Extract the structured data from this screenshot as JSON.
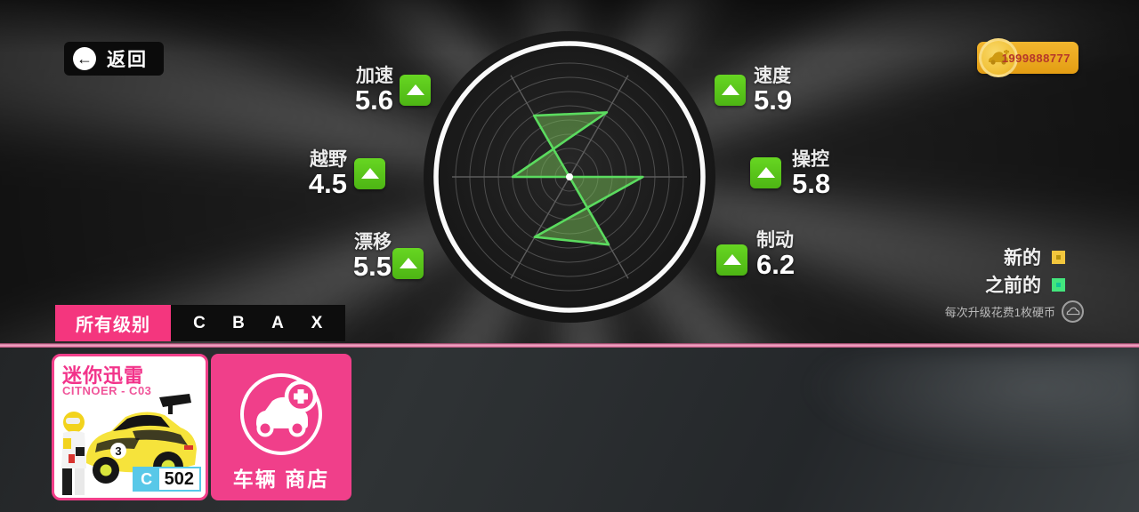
{
  "colors": {
    "pink_accent": "#f2388a",
    "green_upgrade": "#55c617",
    "gold_badge": "#eaa91e",
    "currency_text": "#b5362a",
    "legend_new": "#f2c63d",
    "legend_previous": "#2fe08d",
    "class_badge_cyan": "#58c8e8",
    "radar_polygon_stroke": "#5bdb5f"
  },
  "header": {
    "back_label": "返回",
    "currency_amount": "1999888777"
  },
  "stats": [
    {
      "label": "加速",
      "value": "5.6"
    },
    {
      "label": "速度",
      "value": "5.9"
    },
    {
      "label": "越野",
      "value": "4.5"
    },
    {
      "label": "操控",
      "value": "5.8"
    },
    {
      "label": "漂移",
      "value": "5.5"
    },
    {
      "label": "制动",
      "value": "6.2"
    }
  ],
  "legend": {
    "new_label": "新的",
    "previous_label": "之前的",
    "upgrade_note": "每次升级花费1枚硬币"
  },
  "tabs": {
    "active": "所有级别",
    "classes": [
      "C",
      "B",
      "A",
      "X"
    ]
  },
  "car_card": {
    "name": "迷你迅雷",
    "model": "CITNOER - C03",
    "class_letter": "C",
    "rating": "502"
  },
  "shop": {
    "label": "车辆 商店"
  },
  "chart_data": {
    "type": "radar",
    "title": "",
    "categories": [
      "加速",
      "速度",
      "越野",
      "操控",
      "漂移",
      "制动"
    ],
    "values": [
      5.6,
      5.9,
      4.5,
      5.8,
      5.5,
      6.2
    ],
    "angles_deg": [
      120,
      60,
      180,
      0,
      240,
      300
    ],
    "scale_max": 10,
    "grid_rings": 8,
    "grid_on": true,
    "legend": [
      {
        "label": "新的",
        "color": "#f2c63d"
      },
      {
        "label": "之前的",
        "color": "#2fe08d"
      }
    ]
  }
}
